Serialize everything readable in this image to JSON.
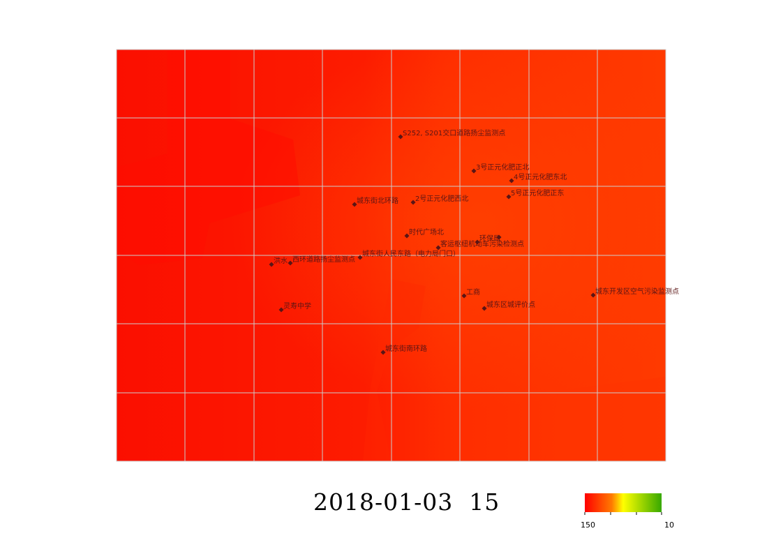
{
  "timestamp": "2018-01-03  15",
  "legend": {
    "min_label": "150",
    "max_label": "10",
    "colors": [
      "#ff0000",
      "#ff7a00",
      "#ffff00",
      "#37a800"
    ]
  },
  "colors": {
    "base": "#fb1a00",
    "warm": "#ff3a00",
    "grid": "#cccccc",
    "marker": "#5a1515"
  },
  "stations": [
    {
      "name": "S252, S201交口道路扬尘监测点"
    },
    {
      "name": "3号正元化肥正北"
    },
    {
      "name": "4号正元化肥东北"
    },
    {
      "name": "5号正元化肥正东"
    },
    {
      "name": "城东街北环路"
    },
    {
      "name": "2号正元化肥西北"
    },
    {
      "name": "时代广场北"
    },
    {
      "name": "环保局"
    },
    {
      "name": "客运枢纽机动车污染检测点"
    },
    {
      "name": "城东街人民东路（电力局门口）"
    },
    {
      "name": "洪水"
    },
    {
      "name": "西环道路扬尘监测点"
    },
    {
      "name": "工商"
    },
    {
      "name": "城东开发区空气污染监测点"
    },
    {
      "name": "城东区城评价点"
    },
    {
      "name": "灵寿中学"
    },
    {
      "name": "城东街南环路"
    }
  ]
}
